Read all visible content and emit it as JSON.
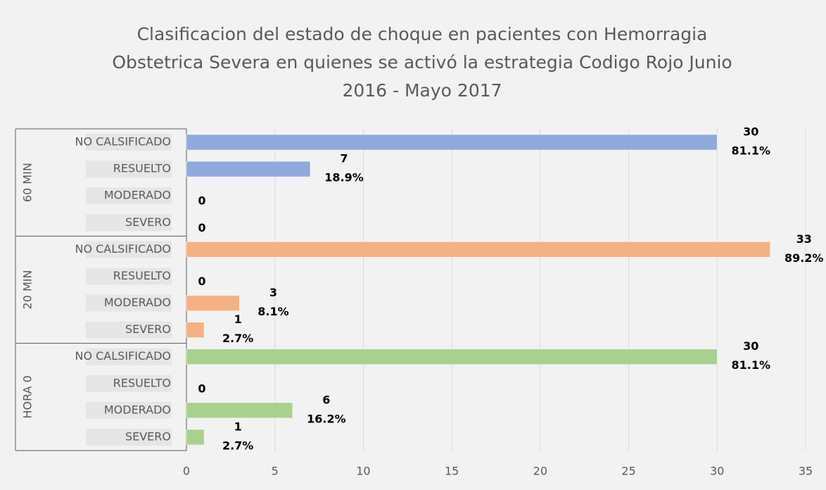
{
  "chart_data": {
    "type": "bar",
    "orientation": "horizontal",
    "title": [
      "Clasificacion del estado de choque en pacientes con Hemorragia",
      "Obstetrica Severa en quienes se activó la estrategia Codigo Rojo Junio",
      "2016 - Mayo 2017"
    ],
    "groups": [
      {
        "name": "60 MIN",
        "color": "#8faadc",
        "categories": [
          "NO CALSIFICADO",
          "RESUELTO",
          "MODERADO",
          "SEVERO"
        ],
        "values": [
          30,
          7,
          0,
          0
        ],
        "percent_labels": [
          "81.1%",
          "18.9%",
          null,
          null
        ]
      },
      {
        "name": "20 MIN",
        "color": "#f4b183",
        "categories": [
          "NO CALSIFICADO",
          "RESUELTO",
          "MODERADO",
          "SEVERO"
        ],
        "values": [
          33,
          0,
          3,
          1
        ],
        "percent_labels": [
          "89.2%",
          null,
          "8.1%",
          "2.7%"
        ]
      },
      {
        "name": "HORA 0",
        "color": "#a9d18e",
        "categories": [
          "NO CALSIFICADO",
          "RESUELTO",
          "MODERADO",
          "SEVERO"
        ],
        "values": [
          30,
          0,
          6,
          1
        ],
        "percent_labels": [
          "81.1%",
          null,
          "16.2%",
          "2.7%"
        ]
      }
    ],
    "xlim": [
      0,
      35
    ],
    "xticks": [
      0,
      5,
      10,
      15,
      20,
      25,
      30,
      35
    ],
    "grid": true
  }
}
